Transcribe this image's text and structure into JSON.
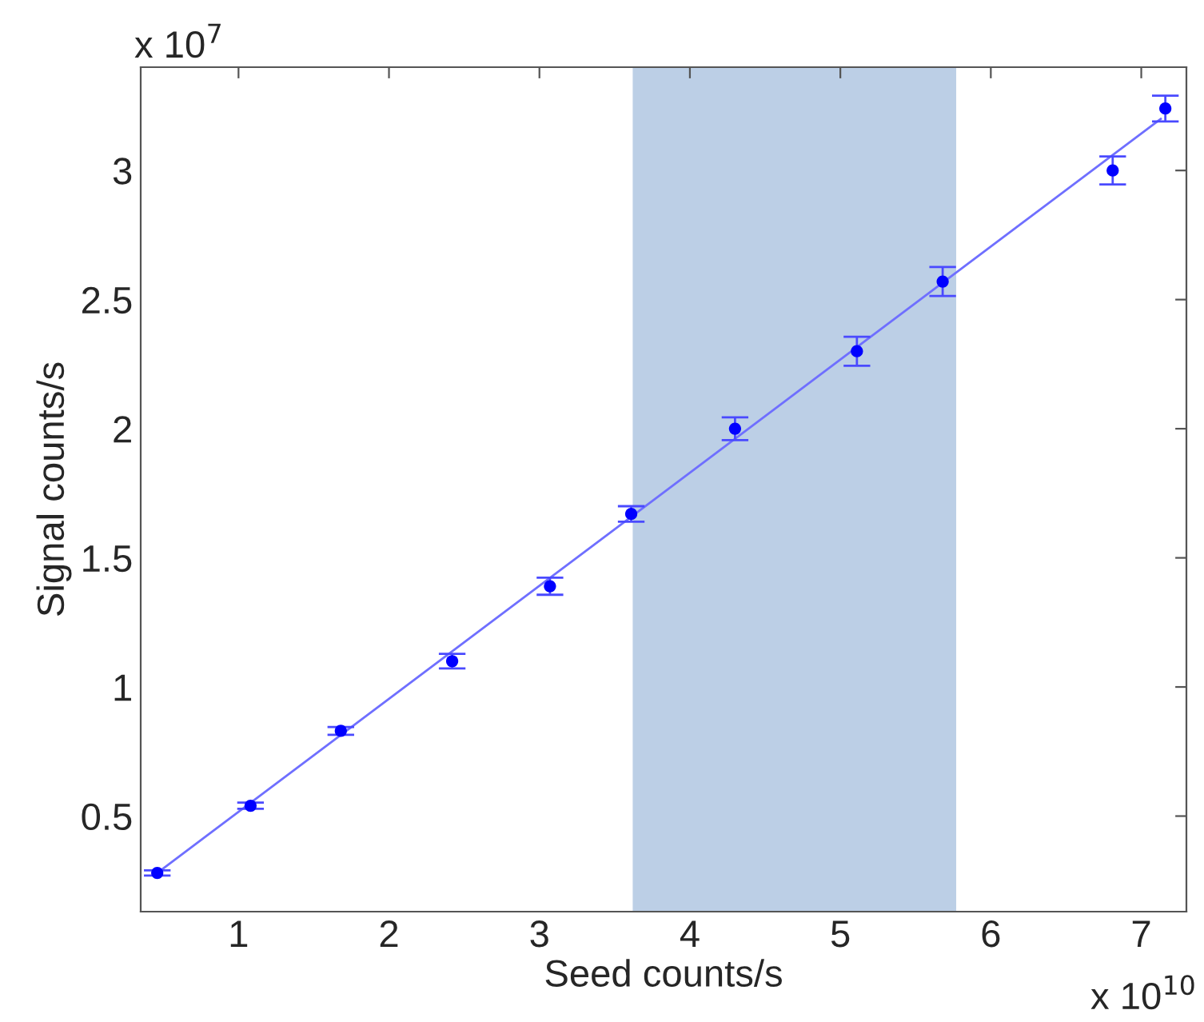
{
  "chart_data": {
    "type": "scatter",
    "xlabel": "Seed counts/s",
    "ylabel": "Signal counts/s",
    "annotations": [
      "x 10$^{7}$",
      "x 10$^{10}$"
    ],
    "xlim": [
      0.35,
      7.3
    ],
    "ylim": [
      0.13,
      3.4
    ],
    "xticks": [
      1,
      2,
      3,
      4,
      5,
      6,
      7
    ],
    "yticks": [
      0.5,
      1,
      1.5,
      2,
      2.5,
      3
    ],
    "grid": false,
    "legend": false,
    "bands": [
      {
        "axis": "x",
        "from": 3.62,
        "to": 5.77,
        "color": "#bccfe6"
      }
    ],
    "series": [
      {
        "marker": "circle",
        "color": "#0000ff",
        "x": [
          0.46,
          1.08,
          1.68,
          2.42,
          3.07,
          3.61,
          4.3,
          5.11,
          5.68,
          6.81,
          7.16
        ],
        "values": [
          0.28,
          0.54,
          0.83,
          1.1,
          1.39,
          1.67,
          2.0,
          2.3,
          2.57,
          3.0,
          3.24
        ],
        "errors": [
          0.01,
          0.012,
          0.015,
          0.028,
          0.033,
          0.03,
          0.044,
          0.056,
          0.056,
          0.054,
          0.05
        ]
      },
      {
        "type": "line",
        "marker": "none",
        "color": "#6f6fff",
        "line_style": "solid",
        "x": [
          0.46,
          7.13
        ],
        "values": [
          0.28,
          3.2
        ]
      }
    ]
  }
}
